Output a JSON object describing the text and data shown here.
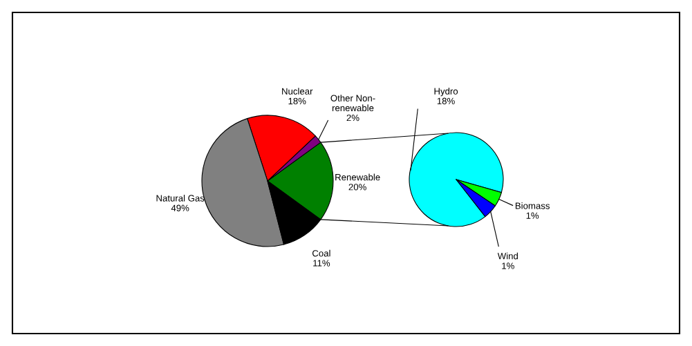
{
  "chart_data": [
    {
      "type": "pie",
      "categories": [
        "Renewable",
        "Other Non-renewable",
        "Nuclear",
        "Natural Gas",
        "Coal"
      ],
      "values": [
        20,
        2,
        18,
        49,
        11
      ],
      "colors": [
        "#008000",
        "#800080",
        "#ff0000",
        "#808080",
        "#000000"
      ],
      "value_labels": [
        "20%",
        "2%",
        "18%",
        "49%",
        "11%"
      ]
    },
    {
      "type": "pie",
      "categories": [
        "Hydro",
        "Biomass",
        "Wind"
      ],
      "values": [
        18,
        1,
        1
      ],
      "colors": [
        "#00ffff",
        "#00ff00",
        "#0000ff"
      ],
      "value_labels": [
        "18%",
        "1%",
        "1%"
      ]
    }
  ]
}
